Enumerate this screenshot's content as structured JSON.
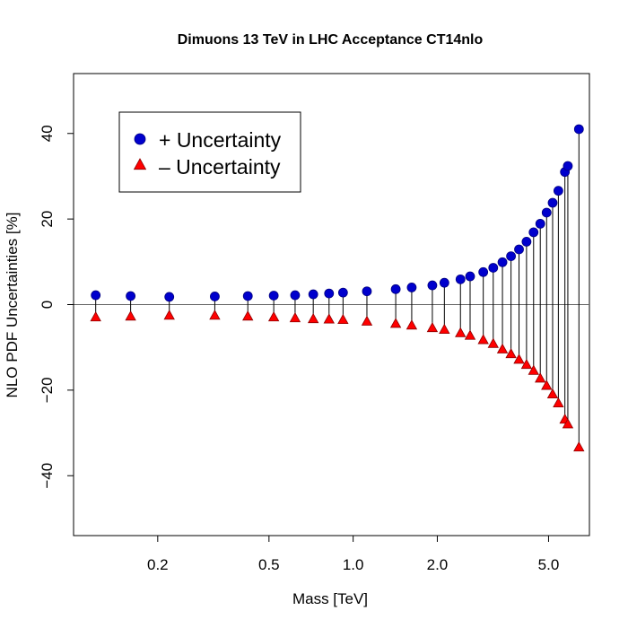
{
  "chart_data": {
    "type": "scatter",
    "title": "Dimuons 13 TeV in LHC Acceptance CT14nlo",
    "xlabel": "Mass [TeV]",
    "ylabel": "NLO  PDF Uncertainties [%]",
    "x_scale": "log",
    "xlim": [
      0.1,
      7.0
    ],
    "ylim": [
      -54,
      54
    ],
    "x_ticks": [
      0.2,
      0.5,
      1.0,
      2.0,
      5.0
    ],
    "x_tick_labels": [
      "0.2",
      "0.5",
      "1.0",
      "2.0",
      "5.0"
    ],
    "y_ticks": [
      -40,
      -20,
      0,
      20,
      40
    ],
    "y_tick_labels": [
      "−40",
      "−20",
      "0",
      "20",
      "40"
    ],
    "reference_line_y": 0,
    "legend": {
      "placement": "top-left",
      "entries": [
        "+ Uncertainty",
        "– Uncertainty"
      ]
    },
    "x": [
      0.12,
      0.16,
      0.22,
      0.32,
      0.42,
      0.52,
      0.62,
      0.72,
      0.82,
      0.92,
      1.12,
      1.42,
      1.62,
      1.92,
      2.12,
      2.42,
      2.62,
      2.92,
      3.17,
      3.42,
      3.67,
      3.92,
      4.17,
      4.42,
      4.67,
      4.92,
      5.17,
      5.42,
      5.72,
      5.86,
      6.42
    ],
    "series": [
      {
        "name": "+ Uncertainty",
        "marker": "circle",
        "color": "#0000cd",
        "values": [
          2.2,
          2.0,
          1.8,
          1.9,
          2.0,
          2.1,
          2.2,
          2.4,
          2.6,
          2.8,
          3.1,
          3.6,
          4.0,
          4.5,
          5.1,
          5.9,
          6.6,
          7.6,
          8.6,
          9.9,
          11.3,
          12.9,
          14.7,
          16.9,
          18.9,
          21.5,
          23.8,
          26.6,
          31.0,
          32.4,
          41.0
        ]
      },
      {
        "name": "– Uncertainty",
        "marker": "triangle",
        "color": "#ff0000",
        "values": [
          -3.0,
          -2.8,
          -2.6,
          -2.6,
          -2.8,
          -3.0,
          -3.2,
          -3.4,
          -3.5,
          -3.6,
          -4.0,
          -4.5,
          -4.9,
          -5.5,
          -5.9,
          -6.7,
          -7.3,
          -8.3,
          -9.2,
          -10.5,
          -11.6,
          -12.9,
          -14.1,
          -15.5,
          -17.3,
          -19.0,
          -21.0,
          -23.1,
          -26.9,
          -28.0,
          -33.4
        ]
      }
    ]
  }
}
